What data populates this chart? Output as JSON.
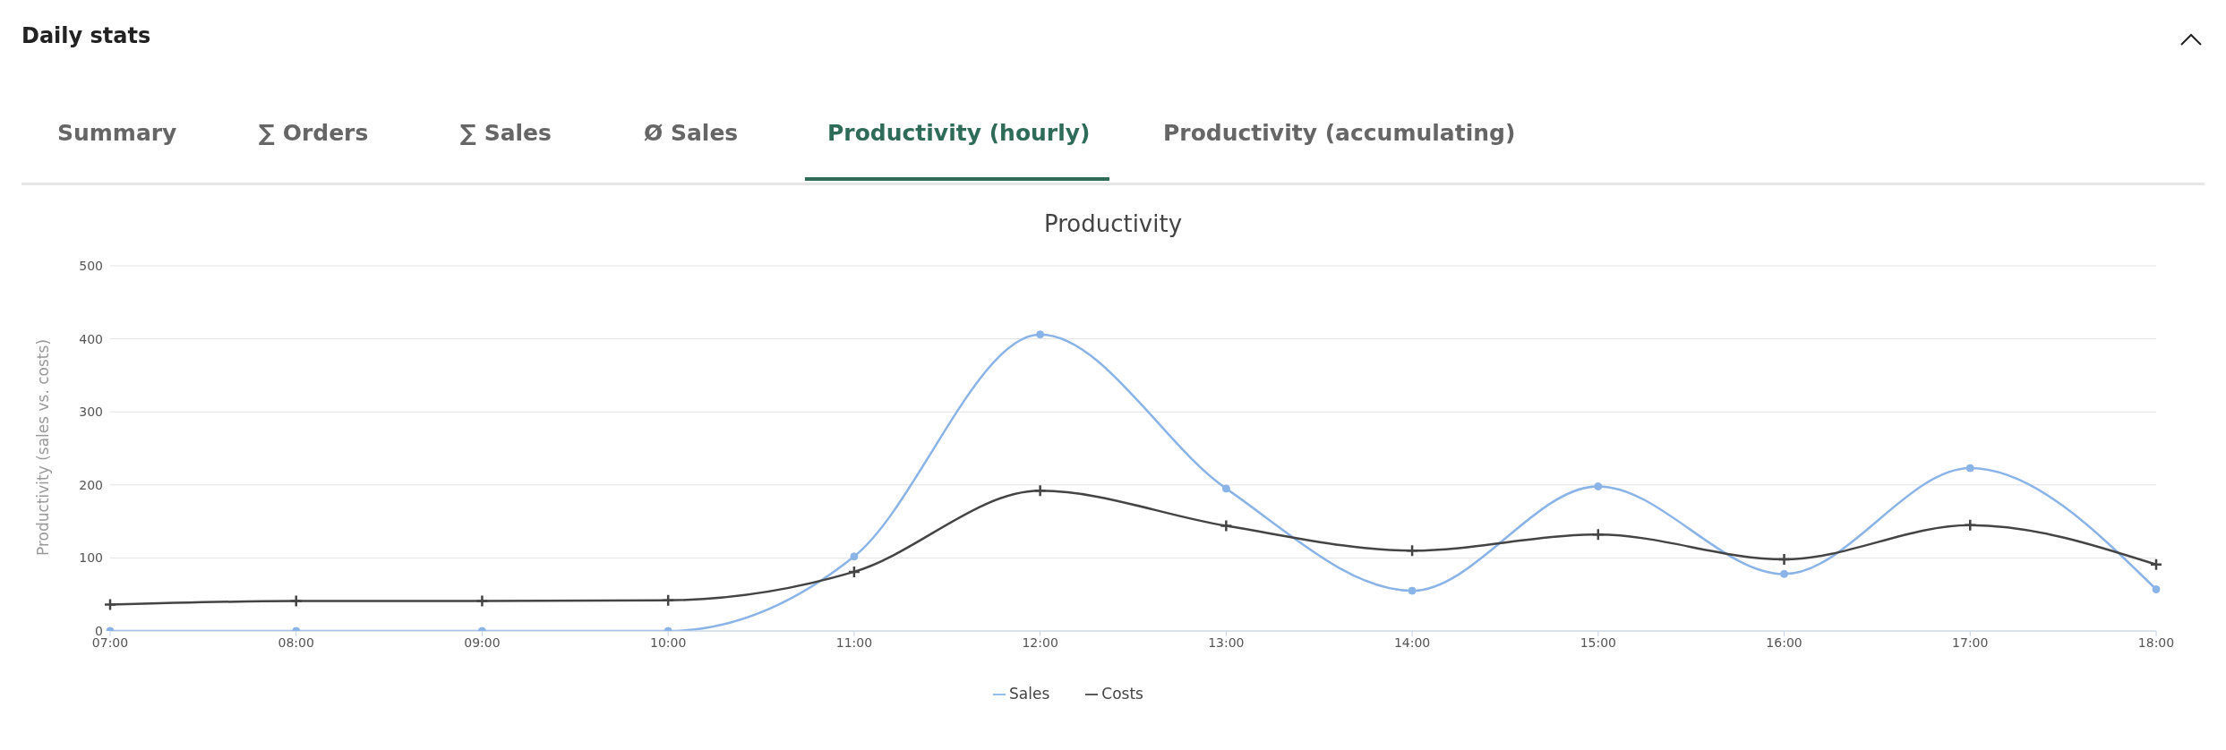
{
  "chart_data": {
    "type": "line",
    "title": "Productivity",
    "ylabel": "Productivity (sales vs. costs)",
    "annotations": [
      "Daily stats",
      "Summary",
      "∑ Orders",
      "∑ Sales",
      "Ø Sales",
      "Productivity (hourly)",
      "Productivity (accumulating)"
    ],
    "categories": [
      "07:00",
      "08:00",
      "09:00",
      "10:00",
      "11:00",
      "12:00",
      "13:00",
      "14:00",
      "15:00",
      "16:00",
      "17:00",
      "18:00"
    ],
    "series": [
      {
        "name": "Sales",
        "color": "#8ab4e8",
        "marker": "circle",
        "values": [
          0,
          0,
          0,
          0,
          102,
          406,
          195,
          55,
          198,
          78,
          223,
          57
        ]
      },
      {
        "name": "Costs",
        "color": "#444444",
        "marker": "cross",
        "values": [
          36,
          41,
          41,
          42,
          81,
          192,
          144,
          110,
          132,
          98,
          145,
          91
        ]
      }
    ],
    "ylim": [
      0,
      500
    ],
    "yticks": [
      0,
      100,
      200,
      300,
      400,
      500
    ],
    "grid": "y",
    "legend": "bottom",
    "line_style": "solid"
  }
}
